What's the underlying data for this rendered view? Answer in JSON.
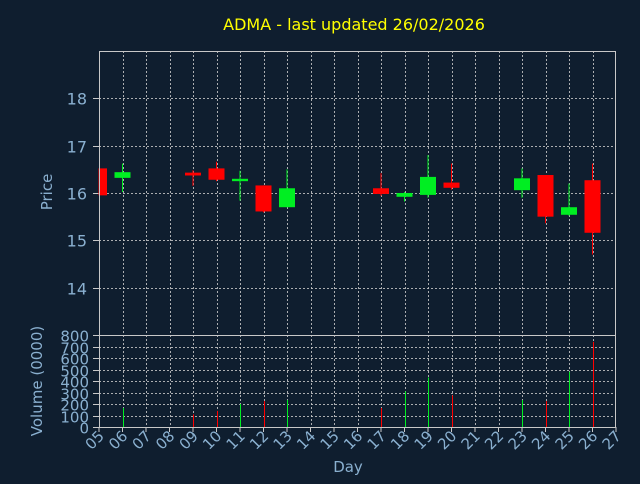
{
  "title": "ADMA - last updated 26/02/2026",
  "colors": {
    "background": "#0f1e2f",
    "title": "#ffff00",
    "axis_text": "#8ab0d0",
    "frame": "#c8c8c8",
    "grid": "#c8c8c8",
    "up": "#00ee22",
    "down": "#ff0000"
  },
  "chart_data": [
    {
      "type": "candlestick",
      "ylabel": "Price",
      "ylim": [
        13,
        19
      ],
      "yticks": [
        14,
        15,
        16,
        17,
        18
      ],
      "xlim": [
        5,
        27
      ],
      "xticks": [
        "05",
        "06",
        "07",
        "08",
        "09",
        "10",
        "11",
        "12",
        "13",
        "14",
        "15",
        "16",
        "17",
        "18",
        "19",
        "20",
        "21",
        "22",
        "23",
        "24",
        "25",
        "26",
        "27"
      ],
      "grid": true,
      "candles": [
        {
          "day": 5,
          "open": 16.52,
          "high": 16.52,
          "low": 15.95,
          "close": 15.95
        },
        {
          "day": 6,
          "open": 16.32,
          "high": 16.62,
          "low": 16.02,
          "close": 16.44
        },
        {
          "day": 9,
          "open": 16.43,
          "high": 16.48,
          "low": 16.15,
          "close": 16.37
        },
        {
          "day": 10,
          "open": 16.52,
          "high": 16.66,
          "low": 16.25,
          "close": 16.28
        },
        {
          "day": 11,
          "open": 16.25,
          "high": 16.47,
          "low": 15.84,
          "close": 16.3
        },
        {
          "day": 12,
          "open": 16.16,
          "high": 16.16,
          "low": 15.59,
          "close": 15.61
        },
        {
          "day": 13,
          "open": 15.7,
          "high": 16.5,
          "low": 15.7,
          "close": 16.1
        },
        {
          "day": 17,
          "open": 16.1,
          "high": 16.42,
          "low": 15.94,
          "close": 15.98
        },
        {
          "day": 18,
          "open": 15.92,
          "high": 16.02,
          "low": 15.82,
          "close": 16.0
        },
        {
          "day": 19,
          "open": 15.96,
          "high": 16.8,
          "low": 15.9,
          "close": 16.34
        },
        {
          "day": 20,
          "open": 16.22,
          "high": 16.62,
          "low": 16.07,
          "close": 16.11
        },
        {
          "day": 23,
          "open": 16.06,
          "high": 16.52,
          "low": 15.9,
          "close": 16.31
        },
        {
          "day": 24,
          "open": 16.38,
          "high": 16.38,
          "low": 15.36,
          "close": 15.5
        },
        {
          "day": 25,
          "open": 15.54,
          "high": 16.2,
          "low": 15.52,
          "close": 15.7
        },
        {
          "day": 26,
          "open": 16.27,
          "high": 16.62,
          "low": 14.7,
          "close": 15.16
        }
      ]
    },
    {
      "type": "bar",
      "xlabel": "Day",
      "ylabel": "Volume (0000)",
      "ylim": [
        0,
        800
      ],
      "yticks": [
        0,
        100,
        200,
        300,
        400,
        500,
        600,
        700,
        800
      ],
      "grid": true,
      "volumes": [
        {
          "day": 5,
          "value": 85,
          "up": false
        },
        {
          "day": 6,
          "value": 165,
          "up": true
        },
        {
          "day": 9,
          "value": 110,
          "up": false
        },
        {
          "day": 10,
          "value": 140,
          "up": false
        },
        {
          "day": 11,
          "value": 200,
          "up": true
        },
        {
          "day": 12,
          "value": 225,
          "up": false
        },
        {
          "day": 13,
          "value": 235,
          "up": true
        },
        {
          "day": 17,
          "value": 165,
          "up": false
        },
        {
          "day": 18,
          "value": 310,
          "up": true
        },
        {
          "day": 19,
          "value": 430,
          "up": true
        },
        {
          "day": 20,
          "value": 275,
          "up": false
        },
        {
          "day": 23,
          "value": 235,
          "up": true
        },
        {
          "day": 24,
          "value": 225,
          "up": false
        },
        {
          "day": 25,
          "value": 480,
          "up": true
        },
        {
          "day": 26,
          "value": 740,
          "up": false
        }
      ]
    }
  ]
}
